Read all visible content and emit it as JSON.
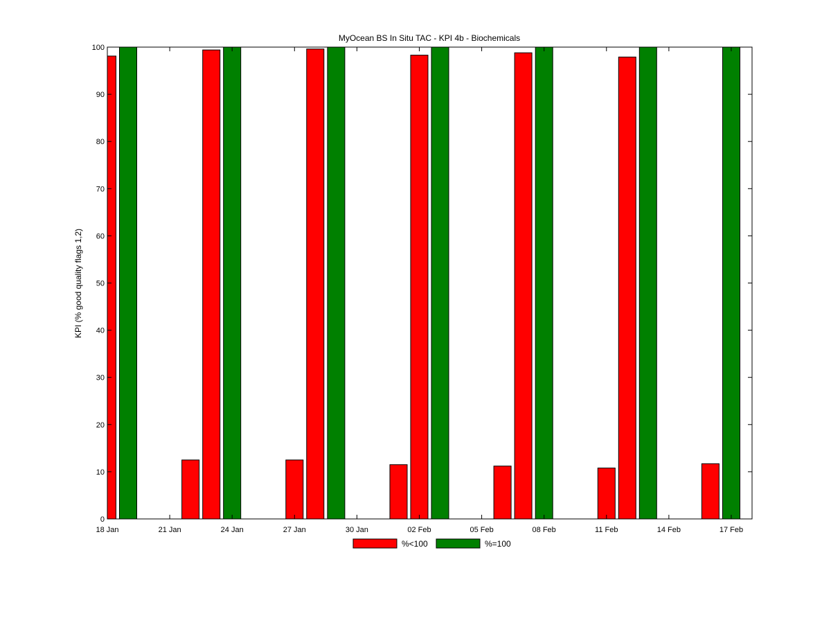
{
  "chart_data": {
    "type": "bar",
    "title": "MyOcean  BS In Situ TAC - KPI 4b - Biochemicals",
    "xlabel": "",
    "ylabel": "KPI (% good quality flags 1,2)",
    "ylim": [
      0,
      100
    ],
    "yticks": [
      0,
      10,
      20,
      30,
      40,
      50,
      60,
      70,
      80,
      90,
      100
    ],
    "xlim_days": [
      0,
      31
    ],
    "xticks": [
      {
        "day": 0,
        "label": "18 Jan"
      },
      {
        "day": 3,
        "label": "21 Jan"
      },
      {
        "day": 6,
        "label": "24 Jan"
      },
      {
        "day": 9,
        "label": "27 Jan"
      },
      {
        "day": 12,
        "label": "30 Jan"
      },
      {
        "day": 15,
        "label": "02 Feb"
      },
      {
        "day": 18,
        "label": "05 Feb"
      },
      {
        "day": 21,
        "label": "08 Feb"
      },
      {
        "day": 24,
        "label": "11 Feb"
      },
      {
        "day": 27,
        "label": "14 Feb"
      },
      {
        "day": 30,
        "label": "17 Feb"
      }
    ],
    "grid": false,
    "legend_position": "bottom-center",
    "series": [
      {
        "name": "%<100",
        "color": "#ff0000",
        "points": [
          {
            "day": 0,
            "value": 98.1
          },
          {
            "day": 4,
            "value": 12.5
          },
          {
            "day": 5,
            "value": 99.4
          },
          {
            "day": 9,
            "value": 12.5
          },
          {
            "day": 10,
            "value": 99.6
          },
          {
            "day": 14,
            "value": 11.5
          },
          {
            "day": 15,
            "value": 98.3
          },
          {
            "day": 19,
            "value": 11.2
          },
          {
            "day": 20,
            "value": 98.8
          },
          {
            "day": 24,
            "value": 10.8
          },
          {
            "day": 25,
            "value": 97.9
          },
          {
            "day": 29,
            "value": 11.7
          }
        ]
      },
      {
        "name": "%=100",
        "color": "#008000",
        "points": [
          {
            "day": 1,
            "value": 100
          },
          {
            "day": 6,
            "value": 100
          },
          {
            "day": 11,
            "value": 100
          },
          {
            "day": 16,
            "value": 100
          },
          {
            "day": 21,
            "value": 100
          },
          {
            "day": 26,
            "value": 100
          },
          {
            "day": 30,
            "value": 100
          }
        ]
      }
    ]
  }
}
